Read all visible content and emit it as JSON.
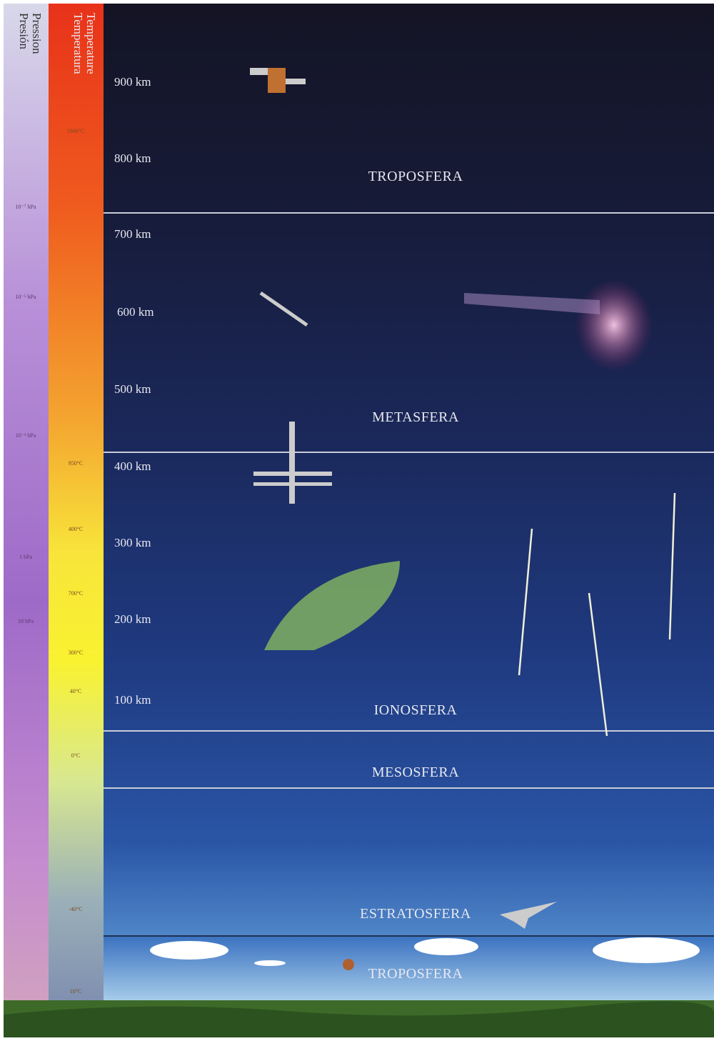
{
  "columns": {
    "pressure": [
      "Pression",
      "Presión"
    ],
    "temperature": [
      "Temperature",
      "Temperatura"
    ]
  },
  "temperature_labels": [
    "1000°C",
    "950°C",
    "400°C",
    "700°C",
    "300°C",
    "40°C",
    "0°C",
    "-40°C",
    "10°C"
  ],
  "pressure_labels": [
    "10⁻⁷ hPa",
    "10⁻⁵ hPa",
    "10⁻³ hPa",
    "1 hPa",
    "10 hPa"
  ],
  "altitudes": [
    "900 km",
    "800 km",
    "700 km",
    "600 km",
    "500 km",
    "400 km",
    "300 km",
    "200 km",
    "100 km"
  ],
  "layers": [
    "TROPOSFERA",
    "METASFERA",
    "IONOSFERA",
    "MESOSFERA",
    "ESTRATOSFERA",
    "TROPOSFERA"
  ]
}
